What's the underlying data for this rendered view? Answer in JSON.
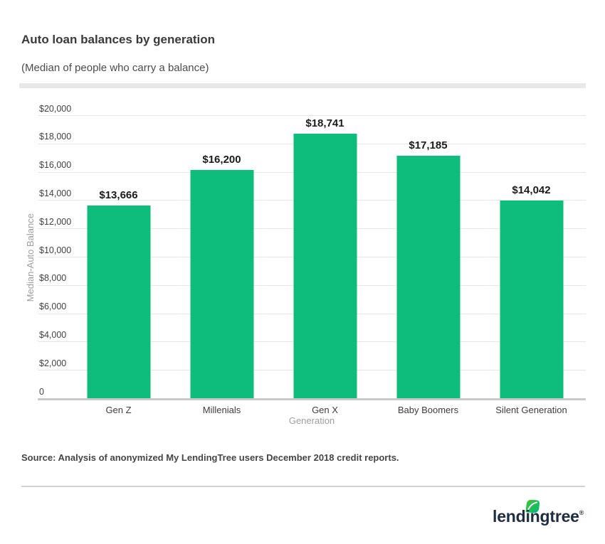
{
  "header": {
    "title": "Auto loan balances by generation",
    "subtitle": "(Median of people who carry a balance)"
  },
  "chart_data": {
    "type": "bar",
    "title": "Auto loan balances by generation",
    "subtitle": "(Median of people who carry a balance)",
    "categories": [
      "Gen Z",
      "Millenials",
      "Gen X",
      "Baby Boomers",
      "Silent Generation"
    ],
    "values": [
      13666,
      16200,
      18741,
      17185,
      14042
    ],
    "value_labels": [
      "$13,666",
      "$16,200",
      "$18,741",
      "$17,185",
      "$14,042"
    ],
    "xlabel": "Generation",
    "ylabel": "Median-Auto Balance",
    "ylim": [
      0,
      20000
    ],
    "ytick_interval": 2000,
    "ytick_labels": [
      "0",
      "$2,000",
      "$4,000",
      "$6,000",
      "$8,000",
      "$10,000",
      "$12,000",
      "$14,000",
      "$16,000",
      "$18,000",
      "$20,000"
    ],
    "grid": true,
    "legend_position": "none",
    "bar_color_hex": "#0ebd7c"
  },
  "footer": {
    "source": "Source: Analysis of anonymized My LendingTree users December 2018 credit reports.",
    "logo": {
      "text": "lendingtree",
      "registered_mark": "®",
      "icon": "leaf-icon",
      "text_color_hex": "#1e2d41",
      "leaf_gradient_start_hex": "#49c23a",
      "leaf_gradient_end_hex": "#00b878"
    }
  },
  "colors": {
    "bar_green": "#0ebd7c",
    "gridline": "#e6e6e6",
    "axis_line": "#c9c9c9",
    "header_divider_bar": "#e8e8e8",
    "footer_divider_line": "#d2d2d2",
    "axis_title_gray": "#9e9e9e",
    "tick_label_gray": "#424242"
  }
}
